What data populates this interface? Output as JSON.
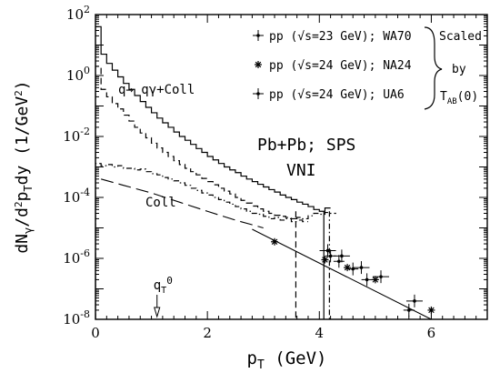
{
  "chart_data": {
    "type": "line",
    "title": "",
    "xlabel": "p_T (GeV)",
    "ylabel": "dN_γ/d²p_T dy (1/GeV²)",
    "xlim": [
      0,
      7
    ],
    "ylim": [
      1e-08,
      100
    ],
    "yscale": "log",
    "grid": false,
    "x_ticks": [
      "0",
      "2",
      "4",
      "6"
    ],
    "y_ticks": [
      "10^-8",
      "10^-6",
      "10^-4",
      "10^-2",
      "10^0",
      "10^2"
    ],
    "annotations": {
      "main_label": "Pb+Pb; SPS",
      "model_label": "VNI",
      "upper_curve_label": "q→ qγ+Coll",
      "lower_curve_label": "Coll",
      "qT0_label": "q_T^0",
      "qT0_value": 1.1
    },
    "legend": {
      "placement": "top-right",
      "entries": [
        "pp (√s=23 GeV); WA70",
        "pp (√s=24 GeV); NA24",
        "pp (√s=24 GeV); UA6"
      ],
      "bracket_text": [
        "Scaled",
        "by",
        "T_AB(0)"
      ]
    },
    "series": [
      {
        "name": "q→ qγ+Coll",
        "style": "solid-histogram",
        "color": "#000000",
        "bin_width": 0.1,
        "values": [
          40,
          5,
          2.5,
          1.5,
          0.9,
          0.55,
          0.35,
          0.22,
          0.14,
          0.09,
          0.06,
          0.04,
          0.028,
          0.02,
          0.014,
          0.01,
          0.0075,
          0.0055,
          0.004,
          0.003,
          0.0022,
          0.0017,
          0.0013,
          0.001,
          0.0008,
          0.00065,
          0.0005,
          0.0004,
          0.00033,
          0.00027,
          0.00022,
          0.00018,
          0.00015,
          0.00012,
          0.0001,
          8.5e-05,
          7e-05,
          6e-05,
          5e-05,
          4e-05,
          3.5e-05,
          4.5e-05
        ]
      },
      {
        "name": "dashed histogram",
        "style": "dashed-histogram",
        "color": "#000000",
        "bin_width": 0.1,
        "values": [
          2,
          0.35,
          0.2,
          0.12,
          0.08,
          0.05,
          0.032,
          0.02,
          0.013,
          0.009,
          0.006,
          0.0042,
          0.003,
          0.0022,
          0.0016,
          0.0012,
          0.0009,
          0.0007,
          0.00055,
          0.00042,
          0.00033,
          0.00026,
          0.0002,
          0.00016,
          0.00013,
          0.0001,
          8e-05,
          6.5e-05,
          5.2e-05,
          4.2e-05,
          3.5e-05,
          3e-05,
          2.6e-05,
          2.4e-05,
          2.2e-05,
          2e-05,
          1.8e-05,
          1.6e-05
        ]
      },
      {
        "name": "Coll",
        "style": "dash-dot-histogram",
        "color": "#000000",
        "bin_width": 0.1,
        "values": [
          0.0013,
          0.0011,
          0.0012,
          0.001,
          0.0011,
          0.0009,
          0.0009,
          0.0008,
          0.00085,
          0.0007,
          0.0006,
          0.00055,
          0.00045,
          0.0004,
          0.00035,
          0.0003,
          0.00025,
          0.0002,
          0.00017,
          0.00014,
          0.00012,
          0.0001,
          8.5e-05,
          7e-05,
          6e-05,
          5e-05,
          4.2e-05,
          3.5e-05,
          3e-05,
          2.8e-05,
          2.4e-05,
          2e-05,
          2.2e-05,
          1.8e-05,
          2e-05,
          1.6e-05,
          2.2e-05,
          2e-05,
          2.5e-05,
          3e-05,
          2.8e-05,
          3.2e-05,
          3e-05
        ]
      },
      {
        "name": "dashed smooth curve",
        "style": "long-dash-line",
        "color": "#000000",
        "x": [
          0.1,
          0.5,
          1.0,
          1.5,
          2.0,
          2.5,
          3.0
        ],
        "y": [
          0.0004,
          0.00025,
          0.00014,
          7e-05,
          3.5e-05,
          1.8e-05,
          1e-05
        ]
      },
      {
        "name": "solid fit line",
        "style": "solid-line",
        "color": "#000000",
        "x": [
          2.8,
          6.0
        ],
        "y": [
          9e-06,
          1e-08
        ]
      },
      {
        "name": "pp (√s=23 GeV); WA70",
        "style": "points",
        "marker": "plus",
        "points": [
          {
            "x": 4.2,
            "y": 1.2e-06
          },
          {
            "x": 4.35,
            "y": 8e-07
          },
          {
            "x": 4.6,
            "y": 4.5e-07
          },
          {
            "x": 4.85,
            "y": 2e-07
          },
          {
            "x": 5.6,
            "y": 2e-08
          }
        ]
      },
      {
        "name": "pp (√s=24 GeV); NA24",
        "style": "points",
        "marker": "asterisk",
        "points": [
          {
            "x": 3.2,
            "y": 3.5e-06
          },
          {
            "x": 4.1,
            "y": 9e-07
          },
          {
            "x": 4.5,
            "y": 5e-07
          },
          {
            "x": 5.0,
            "y": 2e-07
          },
          {
            "x": 6.0,
            "y": 2e-08
          }
        ]
      },
      {
        "name": "pp (√s=24 GeV); UA6",
        "style": "points",
        "marker": "plus-errorbar",
        "points": [
          {
            "x": 4.15,
            "y": 1.8e-06
          },
          {
            "x": 4.4,
            "y": 1.2e-06
          },
          {
            "x": 4.75,
            "y": 5e-07
          },
          {
            "x": 5.1,
            "y": 2.5e-07
          },
          {
            "x": 5.7,
            "y": 4e-08
          }
        ]
      }
    ],
    "vertical_cuts": [
      {
        "style": "dashed",
        "x": 3.58
      },
      {
        "style": "solid",
        "x": 4.08
      },
      {
        "style": "dash-dot",
        "x": 4.18
      }
    ]
  }
}
